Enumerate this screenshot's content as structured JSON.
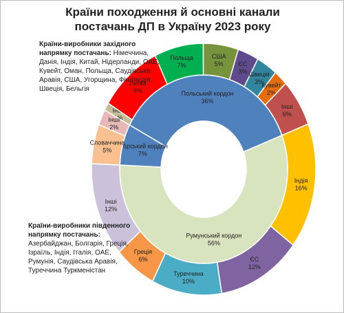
{
  "chart_data": {
    "type": "sunburst",
    "title": "Країни походження й основні канали постачань ДП в Україну 2023 року",
    "inner": {
      "categories": [
        "Польський кордон",
        "Румунський кордон",
        "Угорський кордон"
      ],
      "values": [
        36,
        56,
        7
      ],
      "value_labels": [
        "36%",
        "56%",
        "7%"
      ],
      "colors": [
        "#4f81bd",
        "#d7e4bd",
        "#4f81bd"
      ]
    },
    "outer": {
      "categories": [
        "Інші",
        "Литва",
        "Польща",
        "США",
        "ЄС",
        "Швеція",
        "Кувейт",
        "Інші",
        "Індія",
        "ЄС",
        "Туреччина",
        "Греція",
        "Інші",
        "Словаччина",
        "Інші"
      ],
      "values": [
        1,
        9,
        7,
        5,
        3,
        3,
        2,
        6,
        16,
        12,
        10,
        6,
        12,
        5,
        2
      ],
      "value_labels": [
        "1%",
        "9%",
        "7%",
        "5%",
        "3%",
        "3%",
        "2%",
        "6%",
        "16%",
        "12%",
        "10%",
        "6%",
        "12%",
        "5%",
        "2%"
      ],
      "colors": [
        "#c4bd97",
        "#ff0000",
        "#00b050",
        "#77933c",
        "#5f4b8b",
        "#31859c",
        "#e46c0a",
        "#c0504d",
        "#ffc000",
        "#8064a2",
        "#4bacc6",
        "#f79646",
        "#ccc1da",
        "#fac090",
        "#e6b9b8"
      ]
    },
    "annotations": [
      {
        "heading": "Країни-виробники західного напрямку постачань:",
        "text": "Німеччина, Данія, Індія, Китай, Нідерланди, ОАЕ, Кувейт, Оман, Польща, Саудівська Аравія, США, Угорщина, Фінляндія, Швеція, Бельгія"
      },
      {
        "heading": "Країни-виробники південного напрямку постачань:",
        "text": "Азербайджан, Болгарія, Греція, Ізраїль, Індія, Італія, ОАЕ, Румунія, Саудівська Аравія, Туреччина Туркменістан"
      }
    ]
  }
}
